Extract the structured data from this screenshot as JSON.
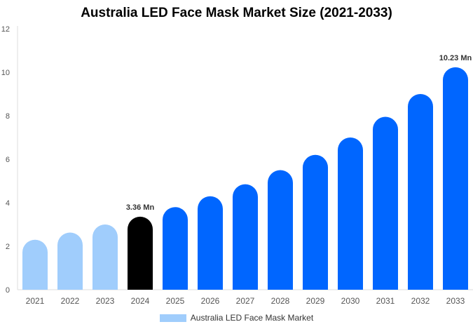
{
  "chart_data": {
    "type": "bar",
    "title": "Australia LED Face Mask Market Size (2021-2033)",
    "categories": [
      "2021",
      "2022",
      "2023",
      "2024",
      "2025",
      "2026",
      "2027",
      "2028",
      "2029",
      "2030",
      "2031",
      "2032",
      "2033"
    ],
    "series": [
      {
        "name": "Australia LED Face Mask Market",
        "values": [
          2.3,
          2.63,
          3.0,
          3.36,
          3.8,
          4.3,
          4.85,
          5.5,
          6.2,
          7.0,
          7.95,
          9.0,
          10.23
        ]
      }
    ],
    "data_labels": {
      "3": "3.36 Mn",
      "12": "10.23 Mn"
    },
    "ylim": [
      0,
      12
    ],
    "yticks": [
      0,
      2,
      4,
      6,
      8,
      10,
      12
    ],
    "grid": false,
    "legend_position": "bottom",
    "colors": {
      "historical": "#a0cdfc",
      "base_year": "#000000",
      "forecast": "#0066ff"
    }
  }
}
